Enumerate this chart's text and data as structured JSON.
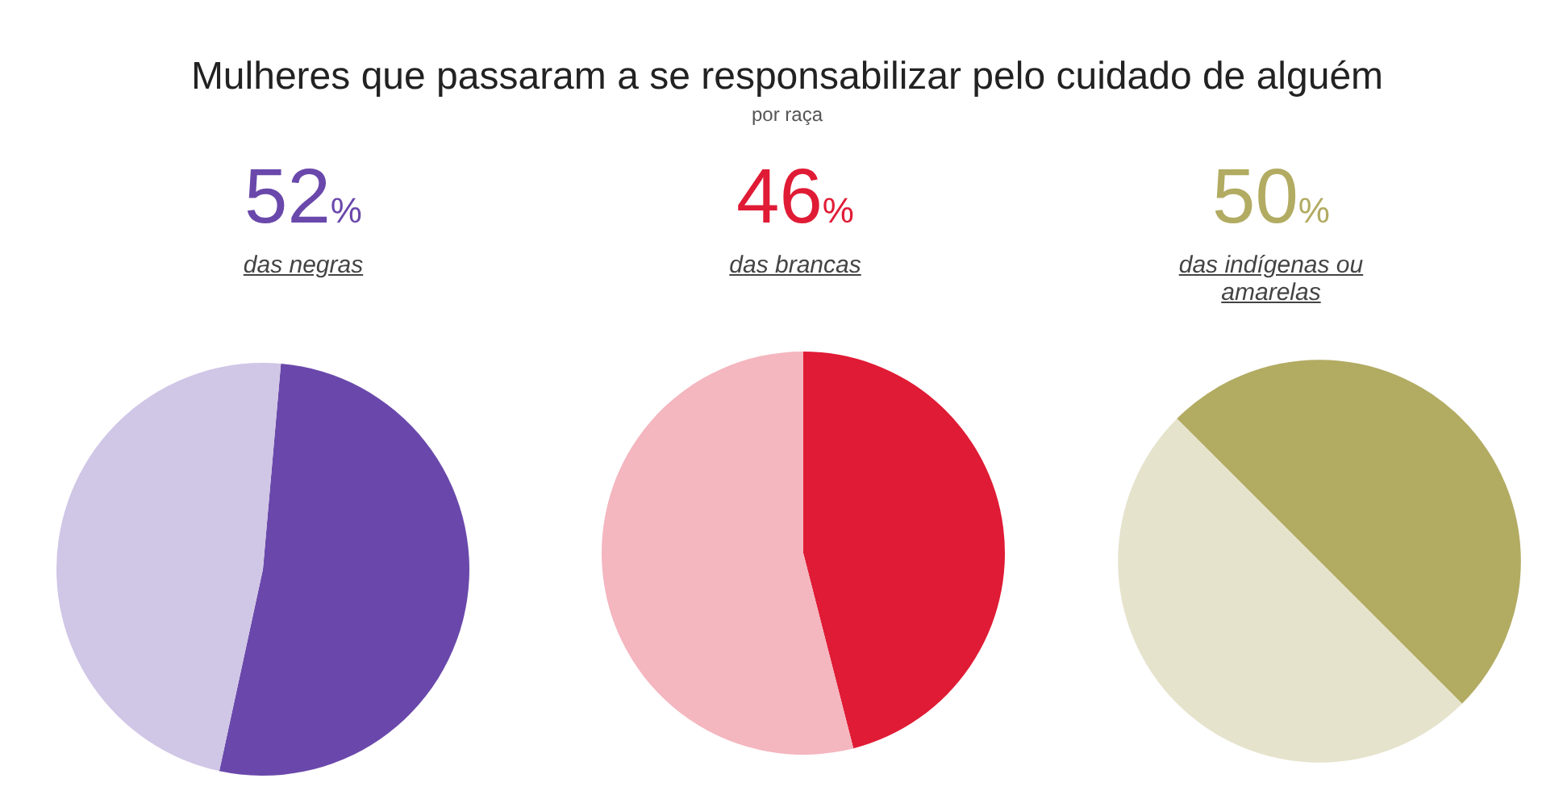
{
  "chart_data": [
    {
      "type": "pie",
      "title": "Mulheres que passaram a se responsabilizar pelo cuidado de alguém",
      "categories": [
        "das negras",
        null
      ],
      "values": [
        52,
        48
      ],
      "colors": [
        "#6a48ab",
        "#d0c6e6"
      ],
      "value_labels": [
        "52%",
        null
      ]
    },
    {
      "type": "pie",
      "subtitle": "por raça",
      "categories": [
        "das brancas",
        null
      ],
      "values": [
        46,
        54
      ],
      "colors": [
        "#e01b35",
        "#f4b6bf"
      ],
      "value_labels": [
        "46%",
        null
      ]
    },
    {
      "type": "pie",
      "categories": [
        "das indígenas ou amarelas",
        null
      ],
      "values": [
        50,
        50
      ],
      "colors": [
        "#b2ab62",
        "#e6e3cd"
      ],
      "value_labels": [
        "50%",
        null
      ]
    }
  ]
}
